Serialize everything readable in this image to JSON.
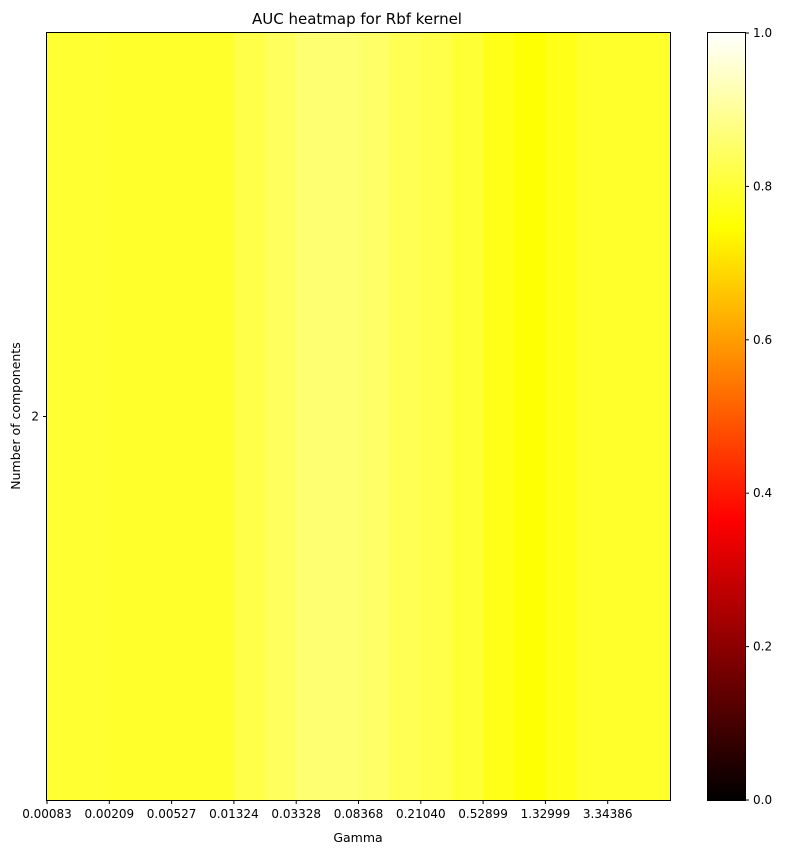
{
  "chart_data": {
    "type": "heatmap",
    "title": "AUC heatmap for Rbf kernel",
    "xlabel": "Gamma",
    "ylabel": "Number of components",
    "x_tick_labels": [
      "0.00083",
      "0.00209",
      "0.00527",
      "0.01324",
      "0.03328",
      "0.08368",
      "0.21040",
      "0.52899",
      "1.32999",
      "3.34386"
    ],
    "y_tick_labels": [
      "2"
    ],
    "rows": [
      "2"
    ],
    "x_values": [
      0.00083,
      0.00131,
      0.00209,
      0.00332,
      0.00527,
      0.00837,
      0.01324,
      0.02099,
      0.03328,
      0.05277,
      0.08368,
      0.13269,
      0.2104,
      0.33363,
      0.52899,
      0.83886,
      1.32999,
      2.10882,
      3.34386,
      5.30212
    ],
    "values": [
      [
        0.795,
        0.795,
        0.79,
        0.79,
        0.79,
        0.79,
        0.82,
        0.84,
        0.86,
        0.86,
        0.85,
        0.83,
        0.82,
        0.8,
        0.77,
        0.75,
        0.77,
        0.79,
        0.79,
        0.79
      ]
    ],
    "colormap": "hot",
    "colorbar": {
      "range": [
        0.0,
        1.0
      ],
      "ticks": [
        "0.0",
        "0.2",
        "0.4",
        "0.6",
        "0.8",
        "1.0"
      ]
    }
  }
}
